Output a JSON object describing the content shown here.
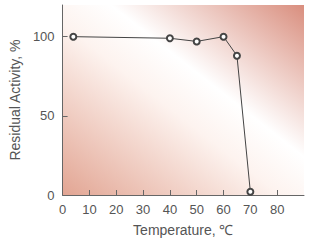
{
  "chart_data": {
    "type": "line",
    "x_label": "Temperature, ℃",
    "y_label": "Residual Activity, %",
    "x": [
      4,
      40,
      50,
      60,
      65,
      70
    ],
    "values": [
      100,
      99,
      97,
      100,
      88,
      2
    ],
    "xlim": [
      0,
      90
    ],
    "xticks": [
      0,
      10,
      20,
      30,
      40,
      50,
      60,
      70,
      80
    ],
    "ylim": [
      0,
      120
    ],
    "yticks": [
      0,
      50,
      100
    ],
    "color": "#444444",
    "marker": "circle",
    "grid": false
  }
}
